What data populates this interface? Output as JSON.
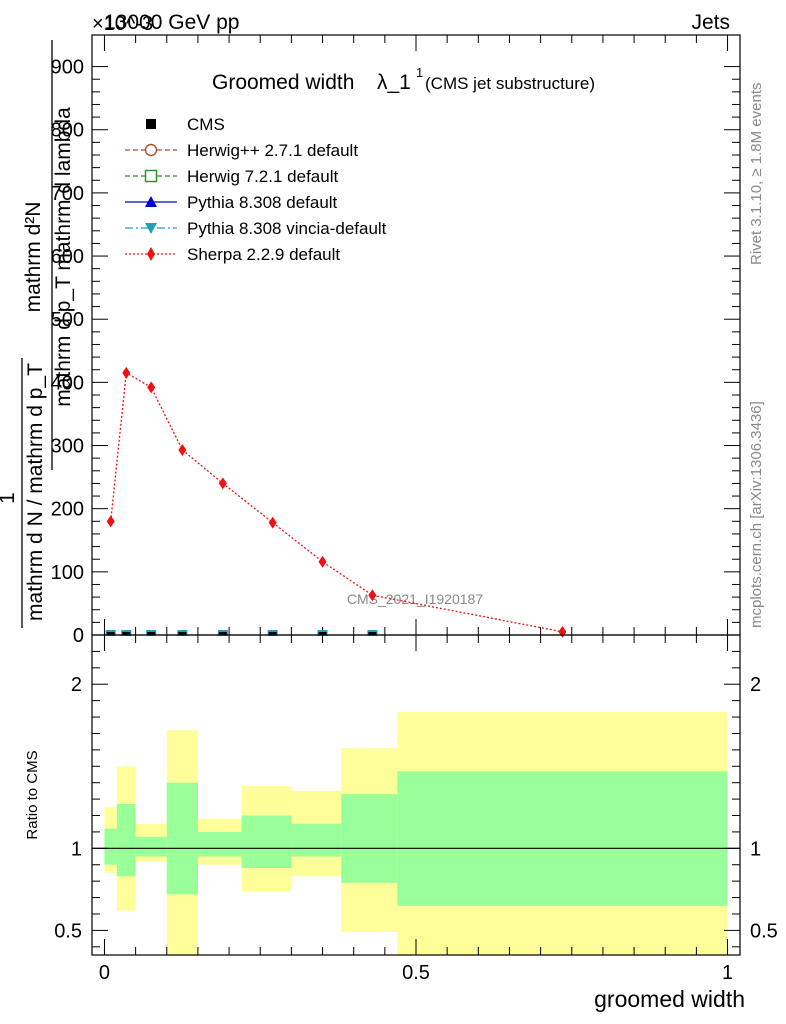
{
  "header": {
    "left": "13000 GeV pp",
    "right": "Jets",
    "exponent": "×10^-3",
    "side_top": "Rivet 3.1.10, ≥ 1.8M events",
    "side_bottom": "mcplots.cern.ch [arXiv:1306.3436]",
    "watermark": "CMS_2021_I1920187"
  },
  "colors": {
    "cms": "#000000",
    "herwigpp": "#a0522d",
    "herwig7": "#2e8b22",
    "pythia": "#0000cc",
    "vincia": "#1aa3b8",
    "sherpa": "#ee1111",
    "band_inner": "#99ff99",
    "band_outer": "#ffff99"
  },
  "chart_data": [
    {
      "type": "line",
      "title": "Groomed width λ_1^1",
      "title_main": "Groomed width",
      "title_symbol": "λ_1",
      "title_sup": "1",
      "subtitle": "(CMS jet substructure)",
      "ylabel_numerator": "mathrm d²N",
      "ylabel_denominator": "mathrm d p_T mathrm d lambda",
      "ylabel_lhs_num": "1",
      "ylabel_lhs_den": "mathrm d N / mathrm d p_T",
      "ylim": [
        0,
        950
      ],
      "xlim": [
        -0.02,
        1.02
      ],
      "yticks": [
        0,
        100,
        200,
        300,
        400,
        500,
        600,
        700,
        800,
        900
      ],
      "legend_placement": "top-left",
      "legend": [
        {
          "key": "cms",
          "label": "CMS"
        },
        {
          "key": "herwigpp",
          "label": "Herwig++ 2.7.1 default"
        },
        {
          "key": "herwig7",
          "label": "Herwig 7.2.1 default"
        },
        {
          "key": "pythia",
          "label": "Pythia 8.308 default"
        },
        {
          "key": "vincia",
          "label": "Pythia 8.308 vincia-default"
        },
        {
          "key": "sherpa",
          "label": "Sherpa 2.2.9 default"
        }
      ],
      "x": [
        0.01,
        0.035,
        0.075,
        0.125,
        0.19,
        0.27,
        0.35,
        0.43,
        0.735
      ],
      "series": [
        {
          "key": "sherpa",
          "name": "Sherpa 2.2.9 default",
          "values": [
            180,
            415,
            392,
            293,
            240,
            178,
            116,
            63,
            5
          ]
        },
        {
          "key": "cms",
          "name": "CMS",
          "values": [
            0,
            0,
            0,
            0,
            0,
            0,
            0,
            0,
            0
          ]
        }
      ]
    },
    {
      "type": "area",
      "ylabel": "Ratio to CMS",
      "xlabel": "groomed width",
      "xlim": [
        -0.02,
        1.02
      ],
      "ylim": [
        0.35,
        2.3
      ],
      "yticks": [
        0.5,
        1,
        2
      ],
      "ytick_labels": [
        "0.5",
        "1",
        "2"
      ],
      "xticks": [
        0,
        0.5,
        1
      ],
      "xtick_labels": [
        "0",
        "0.5",
        "1"
      ],
      "reference_line": 1,
      "bins": [
        {
          "lo": 0.0,
          "hi": 0.02,
          "inner": [
            0.9,
            1.12
          ],
          "outer": [
            0.85,
            1.25
          ]
        },
        {
          "lo": 0.02,
          "hi": 0.05,
          "inner": [
            0.83,
            1.27
          ],
          "outer": [
            0.62,
            1.5
          ]
        },
        {
          "lo": 0.05,
          "hi": 0.1,
          "inner": [
            0.95,
            1.07
          ],
          "outer": [
            0.92,
            1.15
          ]
        },
        {
          "lo": 0.1,
          "hi": 0.15,
          "inner": [
            0.72,
            1.4
          ],
          "outer": [
            0.3,
            1.72
          ]
        },
        {
          "lo": 0.15,
          "hi": 0.22,
          "inner": [
            0.95,
            1.1
          ],
          "outer": [
            0.9,
            1.18
          ]
        },
        {
          "lo": 0.22,
          "hi": 0.3,
          "inner": [
            0.88,
            1.2
          ],
          "outer": [
            0.74,
            1.38
          ]
        },
        {
          "lo": 0.3,
          "hi": 0.38,
          "inner": [
            0.95,
            1.15
          ],
          "outer": [
            0.83,
            1.35
          ]
        },
        {
          "lo": 0.38,
          "hi": 0.47,
          "inner": [
            0.79,
            1.33
          ],
          "outer": [
            0.49,
            1.61
          ]
        },
        {
          "lo": 0.47,
          "hi": 1.0,
          "inner": [
            0.65,
            1.47
          ],
          "outer": [
            0.3,
            1.83
          ]
        }
      ]
    }
  ]
}
